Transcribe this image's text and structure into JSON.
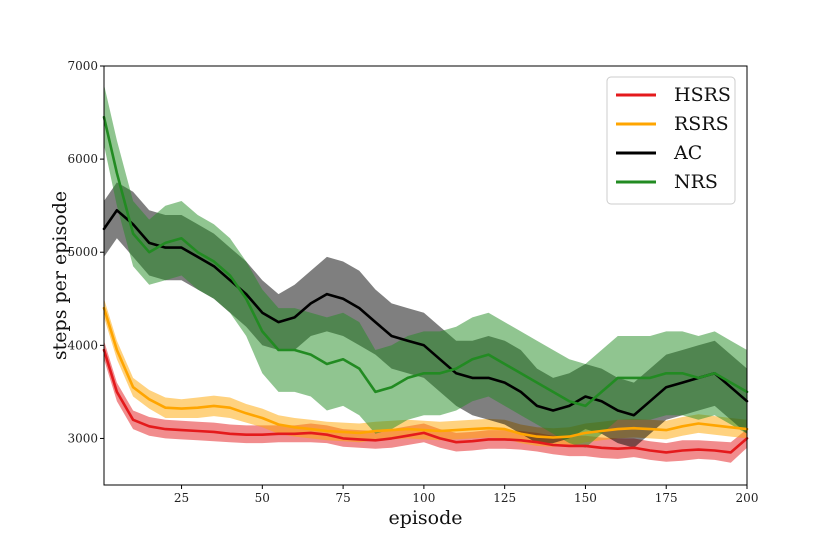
{
  "chart_data": {
    "type": "line",
    "title": "",
    "xlabel": "episode",
    "ylabel": "steps per episode",
    "xlim": [
      1,
      200
    ],
    "ylim": [
      2500,
      7000
    ],
    "xticks": [
      25,
      50,
      75,
      100,
      125,
      150,
      175,
      200
    ],
    "yticks": [
      3000,
      4000,
      5000,
      6000,
      7000
    ],
    "legend_position": "top-right",
    "grid": false,
    "x": [
      1,
      5,
      10,
      15,
      20,
      25,
      30,
      35,
      40,
      45,
      50,
      55,
      60,
      65,
      70,
      75,
      80,
      85,
      90,
      95,
      100,
      105,
      110,
      115,
      120,
      125,
      130,
      135,
      140,
      145,
      150,
      155,
      160,
      165,
      170,
      175,
      180,
      185,
      190,
      195,
      200
    ],
    "series": [
      {
        "name": "HSRS",
        "color": "#e41a1c",
        "values": [
          3950,
          3500,
          3200,
          3130,
          3100,
          3090,
          3080,
          3070,
          3050,
          3040,
          3040,
          3050,
          3050,
          3060,
          3040,
          3000,
          2990,
          2980,
          3000,
          3030,
          3060,
          3000,
          2960,
          2970,
          2990,
          2990,
          2980,
          2960,
          2930,
          2920,
          2920,
          2900,
          2890,
          2900,
          2870,
          2850,
          2870,
          2880,
          2870,
          2850,
          3000
        ],
        "lower": [
          3850,
          3400,
          3100,
          3030,
          3000,
          2990,
          2980,
          2970,
          2960,
          2950,
          2950,
          2960,
          2960,
          2960,
          2950,
          2910,
          2900,
          2890,
          2900,
          2930,
          2960,
          2900,
          2860,
          2870,
          2890,
          2890,
          2880,
          2860,
          2830,
          2810,
          2810,
          2790,
          2780,
          2800,
          2770,
          2750,
          2760,
          2780,
          2770,
          2740,
          2900
        ],
        "upper": [
          4050,
          3600,
          3300,
          3230,
          3200,
          3190,
          3180,
          3170,
          3150,
          3140,
          3140,
          3140,
          3140,
          3160,
          3140,
          3100,
          3090,
          3080,
          3100,
          3130,
          3160,
          3100,
          3060,
          3070,
          3090,
          3090,
          3080,
          3060,
          3030,
          3030,
          3030,
          3010,
          3000,
          3000,
          2970,
          2950,
          2980,
          2980,
          2970,
          2960,
          3100
        ]
      },
      {
        "name": "RSRS",
        "color": "#ffa500",
        "values": [
          4400,
          3950,
          3550,
          3420,
          3330,
          3320,
          3330,
          3350,
          3330,
          3270,
          3220,
          3150,
          3120,
          3100,
          3080,
          3070,
          3060,
          3080,
          3090,
          3100,
          3090,
          3080,
          3090,
          3100,
          3110,
          3100,
          3050,
          3020,
          3010,
          3020,
          3060,
          3080,
          3100,
          3110,
          3100,
          3090,
          3130,
          3160,
          3140,
          3120,
          3100
        ],
        "lower": [
          4300,
          3850,
          3450,
          3320,
          3220,
          3220,
          3220,
          3240,
          3220,
          3170,
          3120,
          3050,
          3020,
          3000,
          2980,
          2970,
          2960,
          2980,
          2990,
          3000,
          2990,
          2980,
          2990,
          3000,
          3010,
          3000,
          2950,
          2920,
          2910,
          2920,
          2960,
          2980,
          3000,
          3010,
          3000,
          2990,
          3030,
          3060,
          3040,
          3020,
          3000
        ],
        "upper": [
          4500,
          4050,
          3650,
          3520,
          3440,
          3420,
          3440,
          3460,
          3440,
          3370,
          3320,
          3250,
          3220,
          3200,
          3180,
          3170,
          3160,
          3180,
          3190,
          3200,
          3190,
          3180,
          3190,
          3200,
          3210,
          3200,
          3150,
          3120,
          3110,
          3120,
          3160,
          3180,
          3200,
          3210,
          3200,
          3190,
          3230,
          3260,
          3240,
          3220,
          3200
        ]
      },
      {
        "name": "AC",
        "color": "#000000",
        "values": [
          5250,
          5450,
          5300,
          5100,
          5050,
          5050,
          4950,
          4850,
          4700,
          4550,
          4350,
          4250,
          4300,
          4450,
          4550,
          4500,
          4400,
          4250,
          4100,
          4050,
          4000,
          3850,
          3700,
          3650,
          3650,
          3600,
          3500,
          3350,
          3300,
          3350,
          3450,
          3400,
          3300,
          3250,
          3400,
          3550,
          3600,
          3650,
          3700,
          3550,
          3400
        ],
        "lower": [
          4950,
          5150,
          4950,
          4750,
          4700,
          4700,
          4600,
          4500,
          4350,
          4200,
          4000,
          3950,
          3950,
          4100,
          4150,
          4100,
          4000,
          3900,
          3750,
          3700,
          3650,
          3500,
          3350,
          3250,
          3200,
          3150,
          3050,
          2950,
          2950,
          3000,
          3100,
          3050,
          2950,
          2900,
          3050,
          3200,
          3250,
          3300,
          3350,
          3200,
          3050
        ],
        "upper": [
          5550,
          5750,
          5650,
          5450,
          5400,
          5400,
          5300,
          5200,
          5050,
          4900,
          4700,
          4550,
          4650,
          4800,
          4950,
          4900,
          4800,
          4600,
          4450,
          4400,
          4350,
          4200,
          4050,
          4050,
          4100,
          4050,
          3950,
          3750,
          3650,
          3700,
          3800,
          3750,
          3650,
          3600,
          3750,
          3900,
          3950,
          4000,
          4050,
          3900,
          3750
        ]
      },
      {
        "name": "NRS",
        "color": "#228b22",
        "values": [
          6450,
          5850,
          5200,
          5000,
          5100,
          5150,
          5000,
          4900,
          4750,
          4500,
          4150,
          3950,
          3950,
          3900,
          3800,
          3850,
          3750,
          3500,
          3550,
          3650,
          3700,
          3700,
          3750,
          3850,
          3900,
          3800,
          3700,
          3600,
          3500,
          3400,
          3350,
          3500,
          3650,
          3650,
          3650,
          3700,
          3700,
          3650,
          3700,
          3600,
          3500
        ],
        "lower": [
          6150,
          5500,
          4850,
          4650,
          4700,
          4750,
          4600,
          4500,
          4350,
          4100,
          3700,
          3500,
          3500,
          3450,
          3300,
          3350,
          3250,
          3050,
          3100,
          3200,
          3250,
          3250,
          3300,
          3400,
          3450,
          3350,
          3250,
          3150,
          3050,
          2950,
          2900,
          3050,
          3200,
          3200,
          3200,
          3250,
          3250,
          3200,
          3250,
          3150,
          3050
        ],
        "upper": [
          6800,
          6200,
          5550,
          5350,
          5500,
          5550,
          5400,
          5300,
          5150,
          4900,
          4600,
          4400,
          4400,
          4350,
          4300,
          4350,
          4250,
          3950,
          4000,
          4100,
          4150,
          4150,
          4200,
          4300,
          4350,
          4250,
          4150,
          4050,
          3950,
          3850,
          3800,
          3950,
          4100,
          4100,
          4100,
          4150,
          4150,
          4100,
          4150,
          4050,
          3950
        ]
      }
    ]
  }
}
